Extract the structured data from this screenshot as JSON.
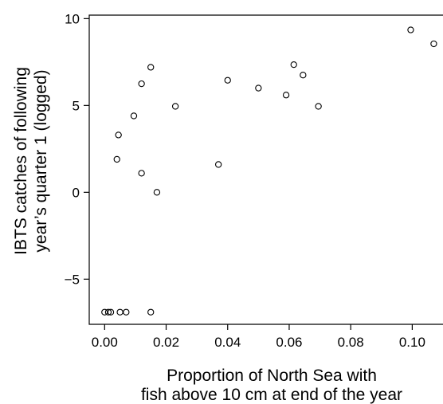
{
  "chart_data": {
    "type": "scatter",
    "xlabel": [
      "Proportion of North Sea with",
      "fish above 10 cm at end of the year"
    ],
    "ylabel": [
      "IBTS catches of following",
      "year’s quarter 1 (logged)"
    ],
    "xlim": [
      -0.005,
      0.11
    ],
    "ylim": [
      -7.6,
      10.2
    ],
    "xticks": [
      0.0,
      0.02,
      0.04,
      0.06,
      0.08,
      0.1
    ],
    "xtick_labels": [
      "0.00",
      "0.02",
      "0.04",
      "0.06",
      "0.08",
      "0.10"
    ],
    "yticks": [
      -5,
      0,
      5,
      10
    ],
    "ytick_labels": [
      "−5",
      "0",
      "5",
      "10"
    ],
    "grid": false,
    "marker": "open-circle",
    "points": [
      {
        "x": 0.0,
        "y": -6.9
      },
      {
        "x": 0.0012,
        "y": -6.9
      },
      {
        "x": 0.002,
        "y": -6.9
      },
      {
        "x": 0.005,
        "y": -6.9
      },
      {
        "x": 0.007,
        "y": -6.9
      },
      {
        "x": 0.015,
        "y": -6.9
      },
      {
        "x": 0.004,
        "y": 1.9
      },
      {
        "x": 0.0045,
        "y": 3.3
      },
      {
        "x": 0.0095,
        "y": 4.4
      },
      {
        "x": 0.012,
        "y": 1.1
      },
      {
        "x": 0.012,
        "y": 6.25
      },
      {
        "x": 0.015,
        "y": 7.2
      },
      {
        "x": 0.017,
        "y": 0.0
      },
      {
        "x": 0.023,
        "y": 4.95
      },
      {
        "x": 0.037,
        "y": 1.6
      },
      {
        "x": 0.04,
        "y": 6.45
      },
      {
        "x": 0.05,
        "y": 6.0
      },
      {
        "x": 0.059,
        "y": 5.6
      },
      {
        "x": 0.0615,
        "y": 7.35
      },
      {
        "x": 0.0645,
        "y": 6.75
      },
      {
        "x": 0.0695,
        "y": 4.95
      },
      {
        "x": 0.0995,
        "y": 9.35
      },
      {
        "x": 0.107,
        "y": 8.55
      }
    ]
  }
}
